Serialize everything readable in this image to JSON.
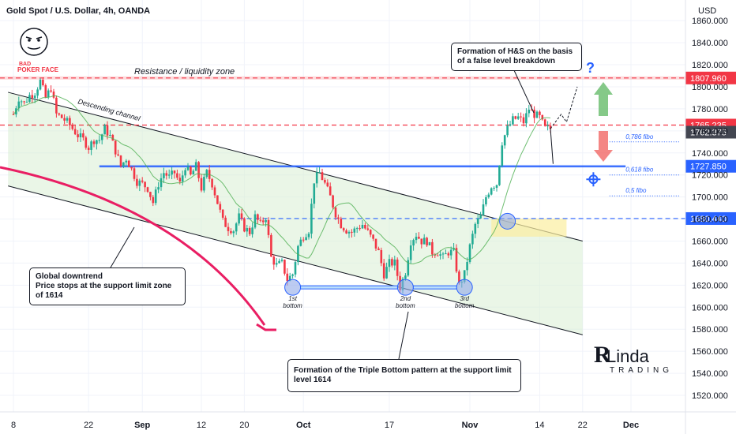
{
  "header": {
    "title": "Gold Spot / U.S. Dollar, 4h, OANDA",
    "currency": "USD"
  },
  "chart_data": {
    "type": "candlestick",
    "ylim": [
      1505,
      1878
    ],
    "xlim": [
      "Aug 8",
      "Dec 1"
    ],
    "y_ticks": [
      1520,
      1540,
      1560,
      1580,
      1600,
      1620,
      1640,
      1660,
      1680,
      1700,
      1720,
      1740,
      1760,
      1780,
      1800,
      1820,
      1840,
      1860
    ],
    "y_tick_labels": [
      "1520.000",
      "1540.000",
      "1560.000",
      "1580.000",
      "1600.000",
      "1620.000",
      "1640.000",
      "1660.000",
      "1680.000",
      "1700.000",
      "1720.000",
      "1740.000",
      "1760.000",
      "1780.000",
      "1800.000",
      "1820.000",
      "1840.000",
      "1860.000"
    ],
    "x_ticks": [
      {
        "label": "8",
        "day": 0,
        "bold": false
      },
      {
        "label": "22",
        "day": 14,
        "bold": false
      },
      {
        "label": "Sep",
        "day": 24,
        "bold": true
      },
      {
        "label": "12",
        "day": 35,
        "bold": false
      },
      {
        "label": "20",
        "day": 43,
        "bold": false
      },
      {
        "label": "Oct",
        "day": 54,
        "bold": true
      },
      {
        "label": "17",
        "day": 70,
        "bold": false
      },
      {
        "label": "Nov",
        "day": 85,
        "bold": true
      },
      {
        "label": "14",
        "day": 98,
        "bold": false
      },
      {
        "label": "22",
        "day": 106,
        "bold": false
      },
      {
        "label": "Dec",
        "day": 115,
        "bold": true
      }
    ],
    "price_path": [
      [
        0,
        1775
      ],
      [
        1,
        1790
      ],
      [
        2,
        1785
      ],
      [
        3,
        1792
      ],
      [
        4,
        1795
      ],
      [
        5,
        1805
      ],
      [
        6,
        1790
      ],
      [
        7,
        1799
      ],
      [
        8,
        1775
      ],
      [
        9,
        1772
      ],
      [
        10,
        1768
      ],
      [
        11,
        1762
      ],
      [
        12,
        1756
      ],
      [
        13,
        1752
      ],
      [
        14,
        1745
      ],
      [
        15,
        1752
      ],
      [
        16,
        1752
      ],
      [
        17,
        1762
      ],
      [
        18,
        1755
      ],
      [
        19,
        1742
      ],
      [
        20,
        1728
      ],
      [
        21,
        1735
      ],
      [
        22,
        1725
      ],
      [
        23,
        1714
      ],
      [
        24,
        1712
      ],
      [
        25,
        1708
      ],
      [
        26,
        1695
      ],
      [
        27,
        1712
      ],
      [
        28,
        1722
      ],
      [
        29,
        1718
      ],
      [
        30,
        1722
      ],
      [
        31,
        1712
      ],
      [
        32,
        1728
      ],
      [
        33,
        1719
      ],
      [
        34,
        1728
      ],
      [
        35,
        1708
      ],
      [
        36,
        1722
      ],
      [
        37,
        1712
      ],
      [
        38,
        1695
      ],
      [
        39,
        1678
      ],
      [
        40,
        1672
      ],
      [
        41,
        1670
      ],
      [
        42,
        1682
      ],
      [
        43,
        1672
      ],
      [
        44,
        1668
      ],
      [
        45,
        1682
      ],
      [
        46,
        1675
      ],
      [
        47,
        1682
      ],
      [
        48,
        1645
      ],
      [
        49,
        1638
      ],
      [
        50,
        1640
      ],
      [
        51,
        1625
      ],
      [
        52,
        1630
      ],
      [
        53,
        1655
      ],
      [
        54,
        1665
      ],
      [
        55,
        1670
      ],
      [
        56,
        1715
      ],
      [
        57,
        1722
      ],
      [
        58,
        1712
      ],
      [
        59,
        1700
      ],
      [
        60,
        1685
      ],
      [
        61,
        1675
      ],
      [
        62,
        1670
      ],
      [
        63,
        1668
      ],
      [
        64,
        1672
      ],
      [
        65,
        1675
      ],
      [
        66,
        1668
      ],
      [
        67,
        1660
      ],
      [
        68,
        1650
      ],
      [
        69,
        1630
      ],
      [
        70,
        1640
      ],
      [
        71,
        1640
      ],
      [
        72,
        1618
      ],
      [
        73,
        1632
      ],
      [
        74,
        1660
      ],
      [
        75,
        1666
      ],
      [
        76,
        1660
      ],
      [
        77,
        1660
      ],
      [
        78,
        1650
      ],
      [
        79,
        1650
      ],
      [
        80,
        1645
      ],
      [
        81,
        1650
      ],
      [
        82,
        1650
      ],
      [
        83,
        1620
      ],
      [
        84,
        1630
      ],
      [
        85,
        1655
      ],
      [
        86,
        1675
      ],
      [
        87,
        1682
      ],
      [
        88,
        1700
      ],
      [
        89,
        1710
      ],
      [
        90,
        1712
      ],
      [
        91,
        1750
      ],
      [
        92,
        1762
      ],
      [
        93,
        1770
      ],
      [
        94,
        1772
      ],
      [
        95,
        1768
      ],
      [
        96,
        1780
      ],
      [
        97,
        1775
      ],
      [
        98,
        1772
      ],
      [
        99,
        1762
      ],
      [
        100,
        1762
      ]
    ],
    "levels": [
      {
        "name": "resistance",
        "price": 1807.96,
        "label": "1807.960",
        "color": "#f23645",
        "style": "dashed"
      },
      {
        "name": "neckline",
        "price": 1765.235,
        "label": "1765.235",
        "color": "#f23645",
        "style": "dashed"
      },
      {
        "name": "last",
        "price": 1762.375,
        "label": "1762.375",
        "color": "#434651",
        "style": "none"
      },
      {
        "name": "support-mid",
        "price": 1727.85,
        "label": "1727.850",
        "color": "#2962ff",
        "style": "solid"
      },
      {
        "name": "support-low",
        "price": 1680.44,
        "label": "1680.440",
        "color": "#2962ff",
        "style": "dashed"
      }
    ],
    "fib_labels": [
      {
        "text": "0,786 fibo",
        "price": 1750
      },
      {
        "text": "0,618 fibo",
        "price": 1720
      },
      {
        "text": "0,5 fibo",
        "price": 1701
      }
    ],
    "bottoms": [
      {
        "label": "1st\nbottom",
        "day": 52,
        "price": 1618
      },
      {
        "label": "2nd\nbottom",
        "day": 73,
        "price": 1618
      },
      {
        "label": "3rd\nbottom",
        "day": 84,
        "price": 1618
      }
    ]
  },
  "annotations": {
    "resistance_zone": "Resistance / liquidity zone",
    "descending_channel": "Descending channel",
    "hs_note": "Formation of H&S on the basis of a false level breakdown",
    "downtrend_note_1": "Global downtrend",
    "downtrend_note_2": "Price stops at the support limit zone of 1614",
    "triple_bottom_note": "Formation of the Triple Bottom pattern at the support limit level 1614",
    "question_mark": "?",
    "logo_top": "BAD",
    "logo_bottom": "POKER FACE",
    "brand_name": "Linda",
    "brand_sub": "TRADING"
  },
  "colors": {
    "up": "#22ab94",
    "down": "#f23645",
    "channel_fill": "#d9efd4",
    "resistance": "#f23645",
    "support": "#2962ff",
    "ma": "#4caf50"
  }
}
